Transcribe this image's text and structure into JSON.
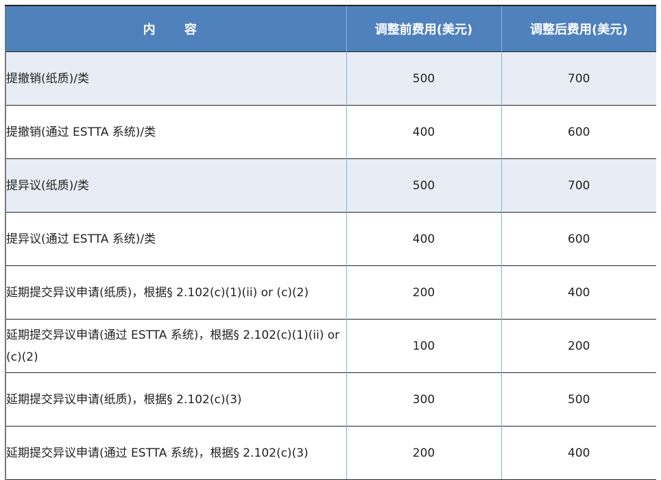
{
  "headers": [
    "内 容",
    "调整前费用(美元)",
    "调整后费用(美元)"
  ],
  "rows": [
    {
      "item": "提撤销(纸质)/类",
      "before": "500",
      "after": "700"
    },
    {
      "item": "提撤销(通过 ESTTA 系统)/类",
      "before": "400",
      "after": "600"
    },
    {
      "item": "提异议(纸质)/类",
      "before": "500",
      "after": "700"
    },
    {
      "item": "提异议(通过 ESTTA 系统)/类",
      "before": "400",
      "after": "600"
    },
    {
      "item": "延期提交异议申请(纸质)，根据§ 2.102(c)(1)(ii) or (c)(2)",
      "before": "200",
      "after": "400"
    },
    {
      "item": "延期提交异议申请(通过 ESTTA 系统)，根据§ 2.102(c)(1)(ii) or (c)(2)",
      "before": "100",
      "after": "200"
    },
    {
      "item": "延期提交异议申请(纸质)，根据§ 2.102(c)(3)",
      "before": "300",
      "after": "500"
    },
    {
      "item": "延期提交异议申请(通过 ESTTA 系统)，根据§ 2.102(c)(3)",
      "before": "200",
      "after": "400"
    }
  ],
  "colors": {
    "header": "#4f81bd",
    "shaded_row": "#e8edf5"
  }
}
